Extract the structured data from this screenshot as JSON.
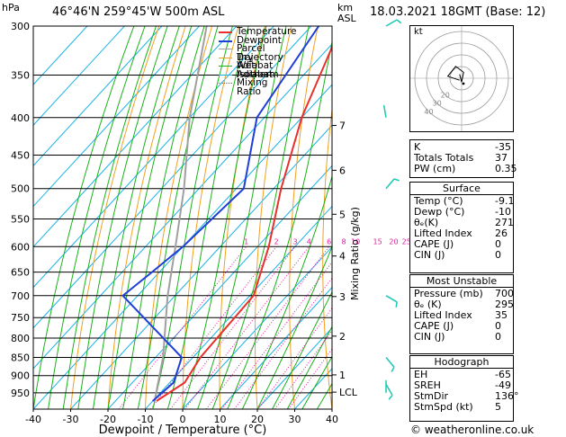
{
  "header": {
    "hpa_unit": "hPa",
    "location": "46°46'N  259°45'W  500m  ASL",
    "km_unit": "km",
    "asl_unit": "ASL",
    "datetime": "18.03.2021  18GMT  (Base: 12)"
  },
  "legend": [
    {
      "label": "Temperature",
      "color": "#e8302c",
      "style": "solid"
    },
    {
      "label": "Dewpoint",
      "color": "#1f3fd8",
      "style": "solid"
    },
    {
      "label": "Parcel Trajectory",
      "color": "#a0a0a0",
      "style": "solid"
    },
    {
      "label": "Dry Adiabat",
      "color": "#f0a020",
      "style": "solid"
    },
    {
      "label": "Wet Adiabat",
      "color": "#19b219",
      "style": "solid"
    },
    {
      "label": "Isotherm",
      "color": "#19b2e6",
      "style": "solid"
    },
    {
      "label": "Mixing Ratio",
      "color": "#e01ea0",
      "style": "dotted"
    }
  ],
  "chart_data": {
    "type": "skew-t",
    "xlabel": "Dewpoint / Temperature (°C)",
    "ylabel_right": "Mixing Ratio (g/kg)",
    "x_range": [
      -40,
      40
    ],
    "x_ticks": [
      "-40",
      "-30",
      "-20",
      "-10",
      "0",
      "10",
      "20",
      "30",
      "40"
    ],
    "pressure_range": [
      300,
      1000
    ],
    "pressure_levels": [
      300,
      350,
      400,
      450,
      500,
      550,
      600,
      650,
      700,
      750,
      800,
      850,
      900,
      950
    ],
    "km_ticks": [
      {
        "label": "7",
        "p": 410
      },
      {
        "label": "6",
        "p": 472
      },
      {
        "label": "5",
        "p": 542
      },
      {
        "label": "4",
        "p": 618
      },
      {
        "label": "3",
        "p": 702
      },
      {
        "label": "2",
        "p": 795
      },
      {
        "label": "1",
        "p": 898
      },
      {
        "label": "LCL",
        "p": 948
      }
    ],
    "mixing_ratio_labels": [
      "1",
      "2",
      "3",
      "4",
      "6",
      "8",
      "10",
      "15",
      "20",
      "25"
    ],
    "mixing_ratio_values": [
      1,
      2,
      3,
      4,
      6,
      8,
      10,
      15,
      20,
      25
    ],
    "temperature": [
      {
        "p": 300,
        "t": -52
      },
      {
        "p": 400,
        "t": -40
      },
      {
        "p": 500,
        "t": -28
      },
      {
        "p": 600,
        "t": -17
      },
      {
        "p": 700,
        "t": -9
      },
      {
        "p": 850,
        "t": -8
      },
      {
        "p": 920,
        "t": -6
      },
      {
        "p": 975,
        "t": -9
      }
    ],
    "dewpoint": [
      {
        "p": 300,
        "t": -58
      },
      {
        "p": 400,
        "t": -52
      },
      {
        "p": 500,
        "t": -38
      },
      {
        "p": 600,
        "t": -40
      },
      {
        "p": 650,
        "t": -42
      },
      {
        "p": 700,
        "t": -44
      },
      {
        "p": 850,
        "t": -13
      },
      {
        "p": 920,
        "t": -9
      },
      {
        "p": 975,
        "t": -10
      }
    ],
    "parcel": [
      {
        "p": 975,
        "t": -9.5
      },
      {
        "p": 850,
        "t": -18
      },
      {
        "p": 700,
        "t": -32
      },
      {
        "p": 600,
        "t": -42
      },
      {
        "p": 500,
        "t": -54
      },
      {
        "p": 400,
        "t": -70
      },
      {
        "p": 300,
        "t": -88
      }
    ],
    "wind_barbs": [
      {
        "p": 300,
        "dir": 240,
        "kt": 15
      },
      {
        "p": 400,
        "dir": 170,
        "kt": 3
      },
      {
        "p": 500,
        "dir": 220,
        "kt": 10
      },
      {
        "p": 700,
        "dir": 300,
        "kt": 10
      },
      {
        "p": 850,
        "dir": 320,
        "kt": 10
      },
      {
        "p": 925,
        "dir": 330,
        "kt": 5
      },
      {
        "p": 950,
        "dir": 180,
        "kt": 3
      }
    ]
  },
  "hodograph": {
    "unit_label": "kt",
    "ring_labels": [
      "40",
      "30",
      "20"
    ],
    "points": [
      [
        -1,
        -1
      ],
      [
        -7,
        1
      ],
      [
        -3,
        6
      ],
      [
        1,
        3
      ],
      [
        0,
        -2
      ],
      [
        -1,
        2
      ]
    ]
  },
  "indices": {
    "top": [
      {
        "label": "K",
        "value": "-35"
      },
      {
        "label": "Totals Totals",
        "value": "37"
      },
      {
        "label": "PW (cm)",
        "value": "0.35"
      }
    ],
    "surface_title": "Surface",
    "surface": [
      {
        "label": "Temp (°C)",
        "value": "-9.1"
      },
      {
        "label": "Dewp (°C)",
        "value": "-10"
      },
      {
        "label": "θₑ(K)",
        "value": "271"
      },
      {
        "label": "Lifted Index",
        "value": "26"
      },
      {
        "label": "CAPE (J)",
        "value": "0"
      },
      {
        "label": "CIN (J)",
        "value": "0"
      }
    ],
    "unstable_title": "Most Unstable",
    "unstable": [
      {
        "label": "Pressure (mb)",
        "value": "700"
      },
      {
        "label": "θₑ (K)",
        "value": "295"
      },
      {
        "label": "Lifted Index",
        "value": "35"
      },
      {
        "label": "CAPE (J)",
        "value": "0"
      },
      {
        "label": "CIN (J)",
        "value": "0"
      }
    ],
    "hodograph_title": "Hodograph",
    "hodo": [
      {
        "label": "EH",
        "value": "-65"
      },
      {
        "label": "SREH",
        "value": "-49"
      },
      {
        "label": "StmDir",
        "value": "136°"
      },
      {
        "label": "StmSpd (kt)",
        "value": "5"
      }
    ]
  },
  "copyright": "© weatheronline.co.uk",
  "colors": {
    "temperature": "#e8302c",
    "dewpoint": "#1f3fd8",
    "parcel": "#a0a0a0",
    "dry_adiabat": "#f0a020",
    "wet_adiabat": "#19b219",
    "isotherm": "#19b2e6",
    "mixing_ratio": "#e01ea0",
    "barb": "#19c8b4"
  }
}
